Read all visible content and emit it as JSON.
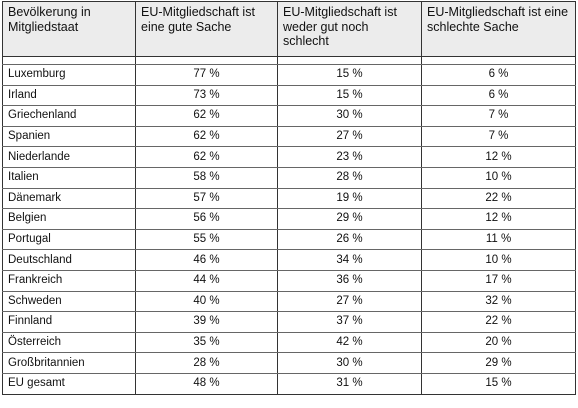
{
  "header": {
    "col1": "Bevölkerung in Mitgliedstaat",
    "col2": "EU-Mitgliedschaft ist eine gute Sache",
    "col3": "EU-Mitgliedschaft ist weder gut noch schlecht",
    "col4": "EU-Mitgliedschaft ist eine schlechte Sache"
  },
  "rows": [
    {
      "country": "Luxemburg",
      "good": "77 %",
      "neutral": "15 %",
      "bad": "6 %"
    },
    {
      "country": "Irland",
      "good": "73 %",
      "neutral": "15 %",
      "bad": "6 %"
    },
    {
      "country": "Griechenland",
      "good": "62 %",
      "neutral": "30 %",
      "bad": "7 %"
    },
    {
      "country": "Spanien",
      "good": "62 %",
      "neutral": "27 %",
      "bad": "7 %"
    },
    {
      "country": "Niederlande",
      "good": "62 %",
      "neutral": "23 %",
      "bad": "12 %"
    },
    {
      "country": "Italien",
      "good": "58 %",
      "neutral": "28 %",
      "bad": "10 %"
    },
    {
      "country": "Dänemark",
      "good": "57 %",
      "neutral": "19 %",
      "bad": "22 %"
    },
    {
      "country": "Belgien",
      "good": "56 %",
      "neutral": "29 %",
      "bad": "12 %"
    },
    {
      "country": "Portugal",
      "good": "55 %",
      "neutral": "26 %",
      "bad": "11 %"
    },
    {
      "country": "Deutschland",
      "good": "46 %",
      "neutral": "34 %",
      "bad": "10 %"
    },
    {
      "country": "Frankreich",
      "good": "44 %",
      "neutral": "36 %",
      "bad": "17 %"
    },
    {
      "country": "Schweden",
      "good": "40 %",
      "neutral": "27 %",
      "bad": "32 %"
    },
    {
      "country": "Finnland",
      "good": "39 %",
      "neutral": "37 %",
      "bad": "22 %"
    },
    {
      "country": "Österreich",
      "good": "35 %",
      "neutral": "42 %",
      "bad": "20 %"
    },
    {
      "country": "Großbritannien",
      "good": "28 %",
      "neutral": "30 %",
      "bad": "29 %"
    },
    {
      "country": "EU gesamt",
      "good": "48 %",
      "neutral": "31 %",
      "bad": "15 %"
    }
  ]
}
